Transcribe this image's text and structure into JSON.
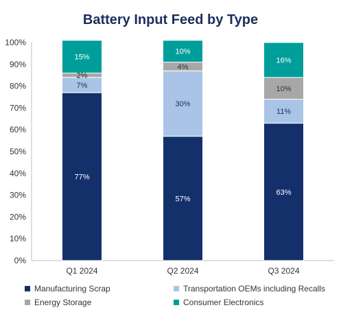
{
  "chart_data": {
    "type": "bar",
    "stacked": true,
    "title": "Battery Input Feed by Type",
    "categories": [
      "Q1 2024",
      "Q2 2024",
      "Q3 2024"
    ],
    "ylim": [
      0,
      100
    ],
    "yticks": [
      "0%",
      "10%",
      "20%",
      "30%",
      "40%",
      "50%",
      "60%",
      "70%",
      "80%",
      "90%",
      "100%"
    ],
    "legend_position": "bottom",
    "series": [
      {
        "name": "Manufacturing Scrap",
        "color": "#13306b",
        "label_color": "#ffffff",
        "values": [
          77,
          57,
          63
        ],
        "labels": [
          "77%",
          "57%",
          "63%"
        ]
      },
      {
        "name": "Transportation OEMs including Recalls",
        "color": "#a9c4e6",
        "label_color": "#1a2e5c",
        "values": [
          7,
          30,
          11
        ],
        "labels": [
          "7%",
          "30%",
          "11%"
        ]
      },
      {
        "name": "Energy Storage",
        "color": "#a7a7a7",
        "label_color": "#333333",
        "values": [
          2,
          4,
          10
        ],
        "labels": [
          "2%",
          "4%",
          "10%"
        ]
      },
      {
        "name": "Consumer Electronics",
        "color": "#009e9a",
        "label_color": "#ffffff",
        "values": [
          15,
          10,
          16
        ],
        "labels": [
          "15%",
          "10%",
          "16%"
        ]
      }
    ]
  }
}
